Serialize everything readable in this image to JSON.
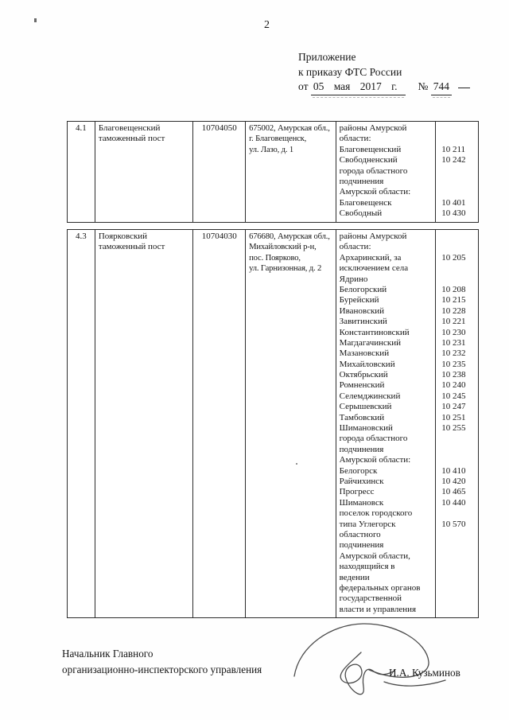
{
  "page": {
    "number": "2"
  },
  "header": {
    "line1": "Приложение",
    "line2": "к приказу ФТС России",
    "date_prefix": "от",
    "date_value": "05 мая 2017 г.",
    "number_sign": "№",
    "number_value": "744"
  },
  "table": {
    "rows": [
      {
        "num": "4.1",
        "name_lines": [
          "Благовещенский",
          "таможенный пост"
        ],
        "code": "10704050",
        "address_lines": [
          "675002, Амурская обл.,",
          "г. Благовещенск,",
          "ул. Лазо, д. 1"
        ],
        "regions": [
          {
            "t": "районы Амурской",
            "c": ""
          },
          {
            "t": "области:",
            "c": ""
          },
          {
            "t": "Благовещенский",
            "c": "10 211"
          },
          {
            "t": "Свободненский",
            "c": "10 242"
          },
          {
            "t": "города областного",
            "c": ""
          },
          {
            "t": "подчинения",
            "c": ""
          },
          {
            "t": "Амурской области:",
            "c": ""
          },
          {
            "t": "Благовещенск",
            "c": "10 401"
          },
          {
            "t": "Свободный",
            "c": "10 430"
          }
        ]
      },
      {
        "num": "4.3",
        "name_lines": [
          "Поярковский",
          "таможенный пост"
        ],
        "code": "10704030",
        "address_lines": [
          "676680, Амурская обл.,",
          "Михайловский р-н,",
          "пос. Поярково,",
          "ул. Гарнизонная, д. 2"
        ],
        "regions": [
          {
            "t": "районы Амурской",
            "c": ""
          },
          {
            "t": "области:",
            "c": ""
          },
          {
            "t": "Архаринский, за",
            "c": "10 205"
          },
          {
            "t": "исключением села",
            "c": ""
          },
          {
            "t": "Ядрино",
            "c": ""
          },
          {
            "t": "Белогорский",
            "c": "10 208"
          },
          {
            "t": "Бурейский",
            "c": "10 215"
          },
          {
            "t": "Ивановский",
            "c": "10 228"
          },
          {
            "t": "Завитинский",
            "c": "10 221"
          },
          {
            "t": "Константиновский",
            "c": "10 230"
          },
          {
            "t": "Магдагачинский",
            "c": "10 231"
          },
          {
            "t": "Мазановский",
            "c": "10 232"
          },
          {
            "t": "Михайловский",
            "c": "10 235"
          },
          {
            "t": "Октябрьский",
            "c": "10 238"
          },
          {
            "t": "Ромненский",
            "c": "10 240"
          },
          {
            "t": "Селемджинский",
            "c": "10 245"
          },
          {
            "t": "Серышевский",
            "c": "10 247"
          },
          {
            "t": "Тамбовский",
            "c": "10 251"
          },
          {
            "t": "Шимановский",
            "c": "10 255"
          },
          {
            "t": "города областного",
            "c": ""
          },
          {
            "t": "подчинения",
            "c": ""
          },
          {
            "t": "Амурской области:",
            "c": ""
          },
          {
            "t": "Белогорск",
            "c": "10 410"
          },
          {
            "t": "Райчихинск",
            "c": "10 420"
          },
          {
            "t": "Прогресс",
            "c": "10 465"
          },
          {
            "t": "Шимановск",
            "c": "10 440"
          },
          {
            "t": "поселок городского",
            "c": ""
          },
          {
            "t": "типа Углегорск",
            "c": "10 570"
          },
          {
            "t": "областного",
            "c": ""
          },
          {
            "t": "подчинения",
            "c": ""
          },
          {
            "t": "Амурской области,",
            "c": ""
          },
          {
            "t": "находящийся в",
            "c": ""
          },
          {
            "t": "ведении",
            "c": ""
          },
          {
            "t": "федеральных органов",
            "c": ""
          },
          {
            "t": "государственной",
            "c": ""
          },
          {
            "t": "власти и управления",
            "c": ""
          }
        ]
      }
    ]
  },
  "footer": {
    "line1": "Начальник Главного",
    "line2": "организационно-инспекторского управления",
    "signer": "И.А. Кузьминов"
  }
}
